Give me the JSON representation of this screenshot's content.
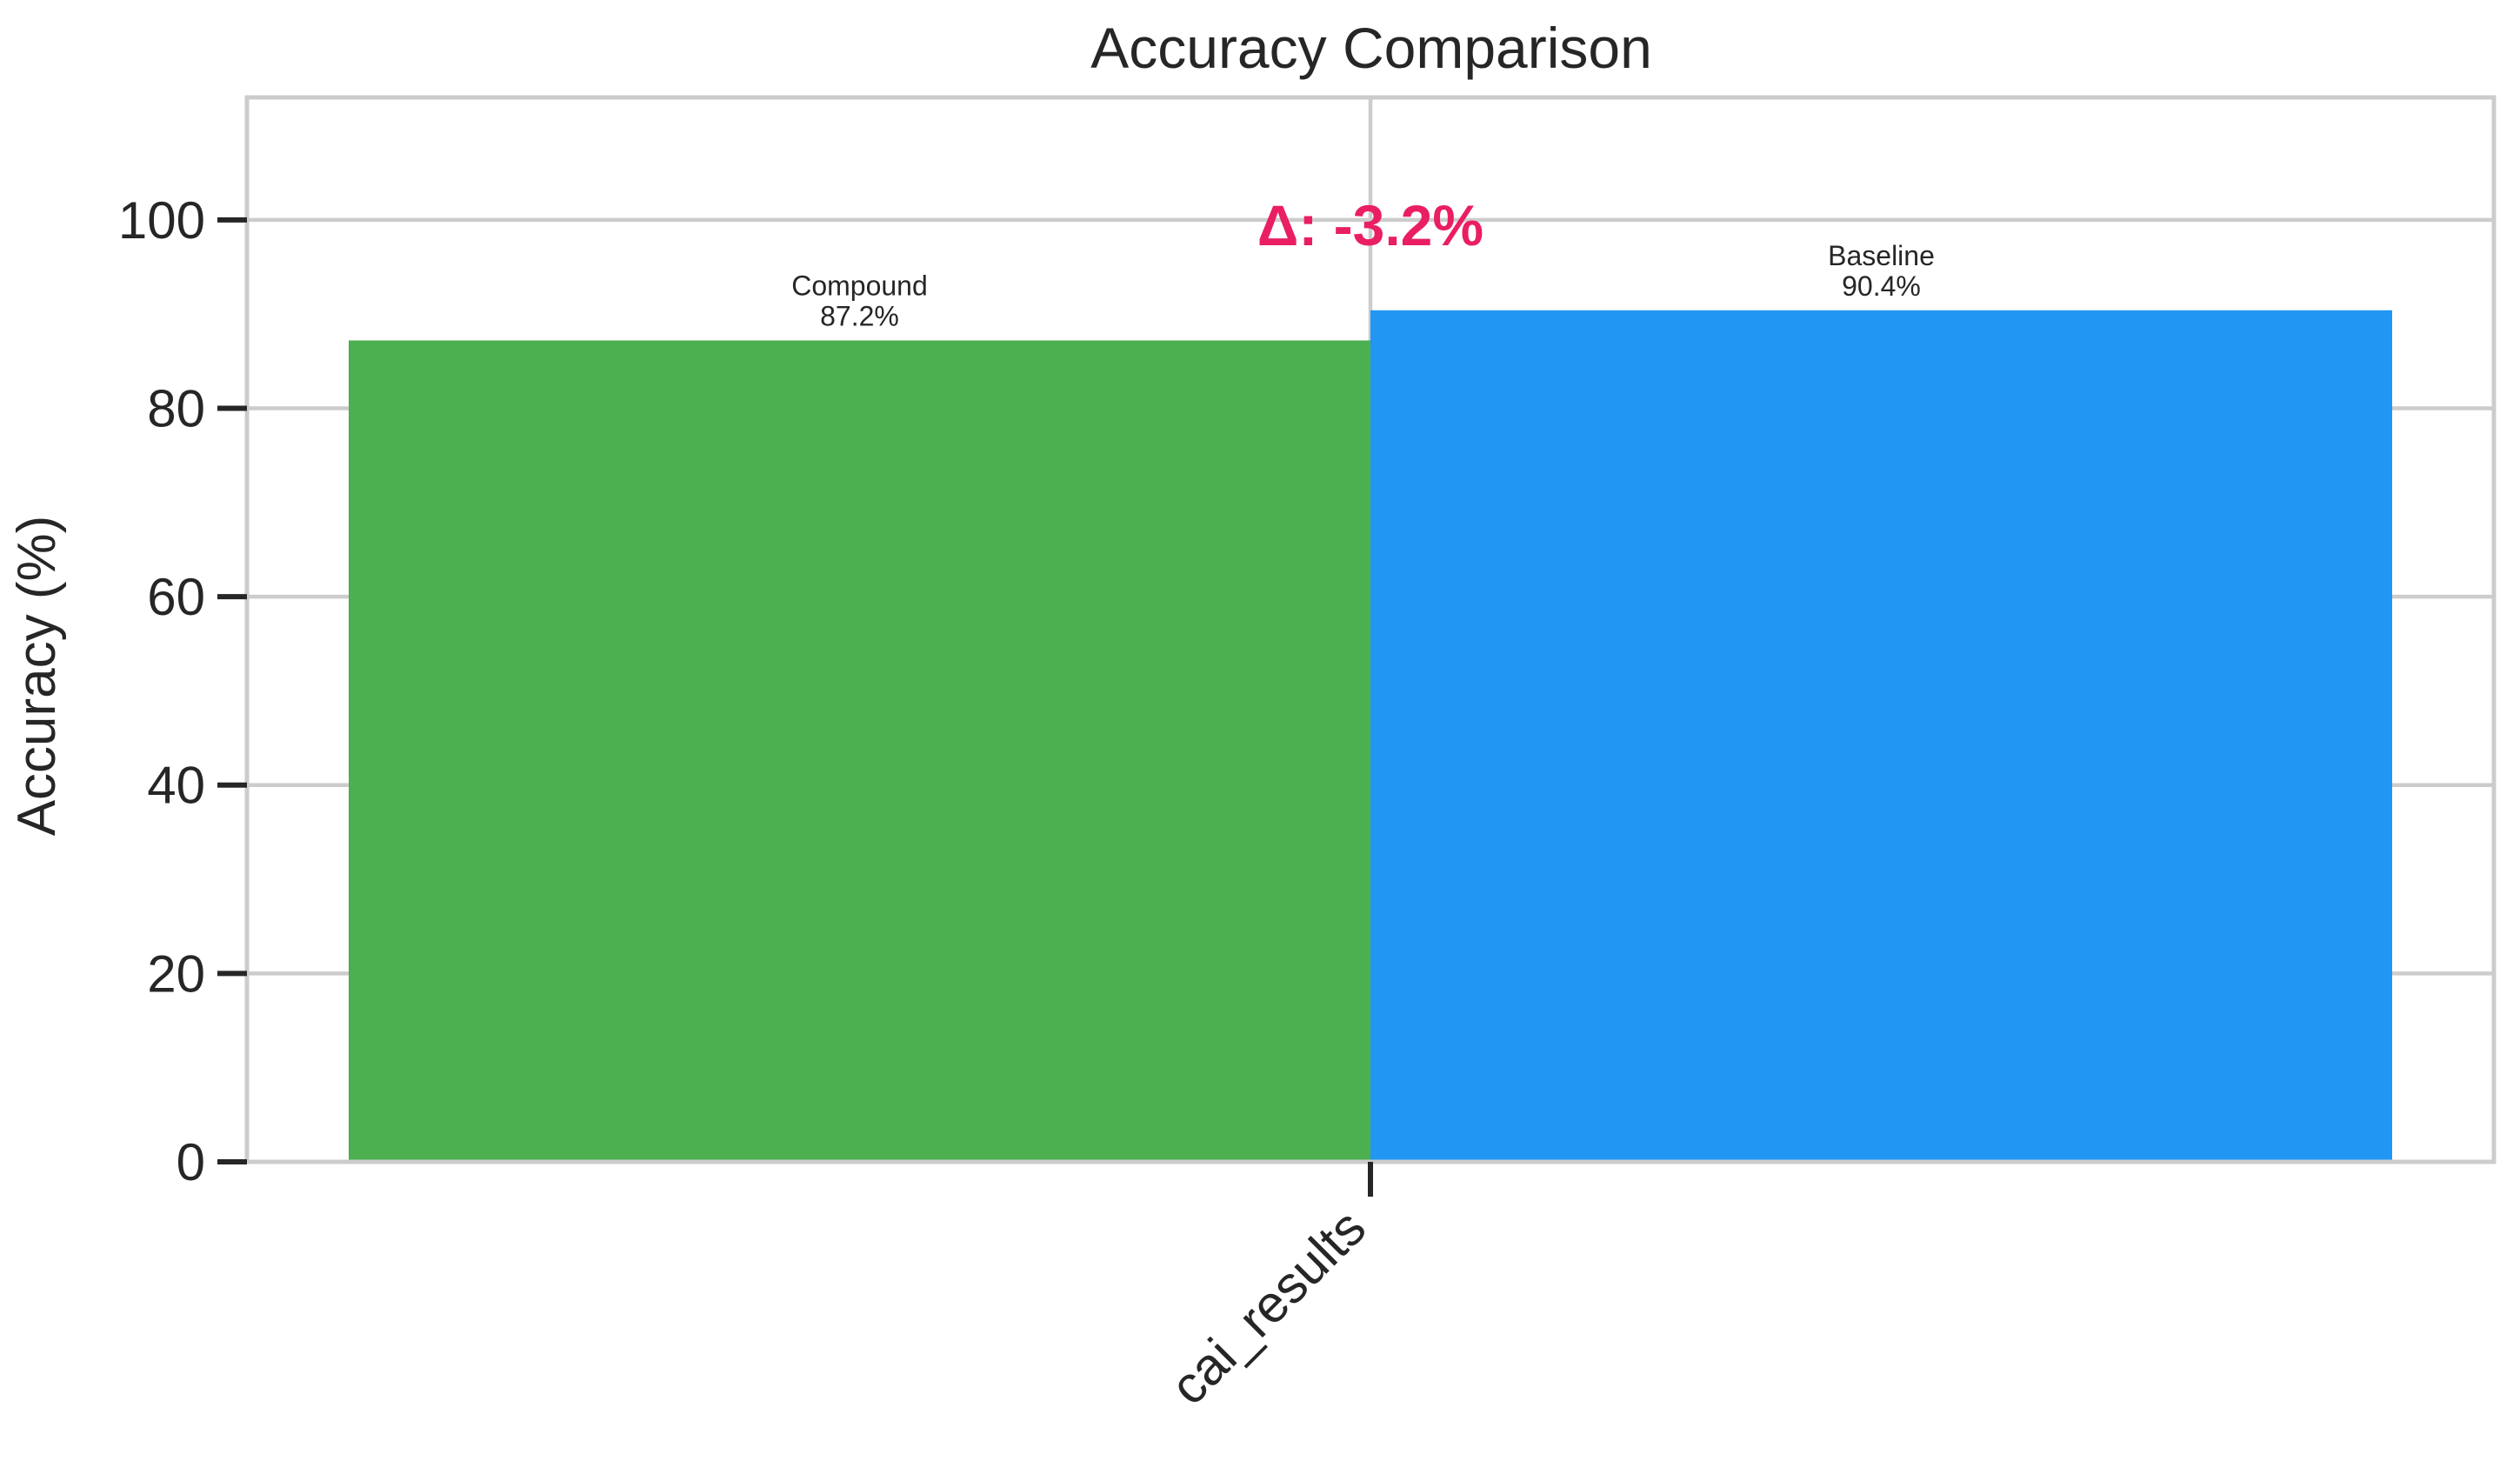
{
  "chart_data": {
    "type": "bar",
    "title": "Accuracy Comparison",
    "xlabel": "",
    "ylabel": "Accuracy (%)",
    "categories": [
      "cai_results"
    ],
    "ylim": [
      0,
      113
    ],
    "yticks": [
      0,
      20,
      40,
      60,
      80,
      100
    ],
    "grid": true,
    "series": [
      {
        "name": "Compound",
        "values": [
          87.2
        ],
        "label": "87.2%",
        "color": "#4caf50"
      },
      {
        "name": "Baseline",
        "values": [
          90.4
        ],
        "label": "90.4%",
        "color": "#2196f3"
      }
    ],
    "annotation": {
      "text": "Δ: -3.2%",
      "value": -3.2,
      "y": 99.5,
      "color": "#e91e63"
    }
  }
}
